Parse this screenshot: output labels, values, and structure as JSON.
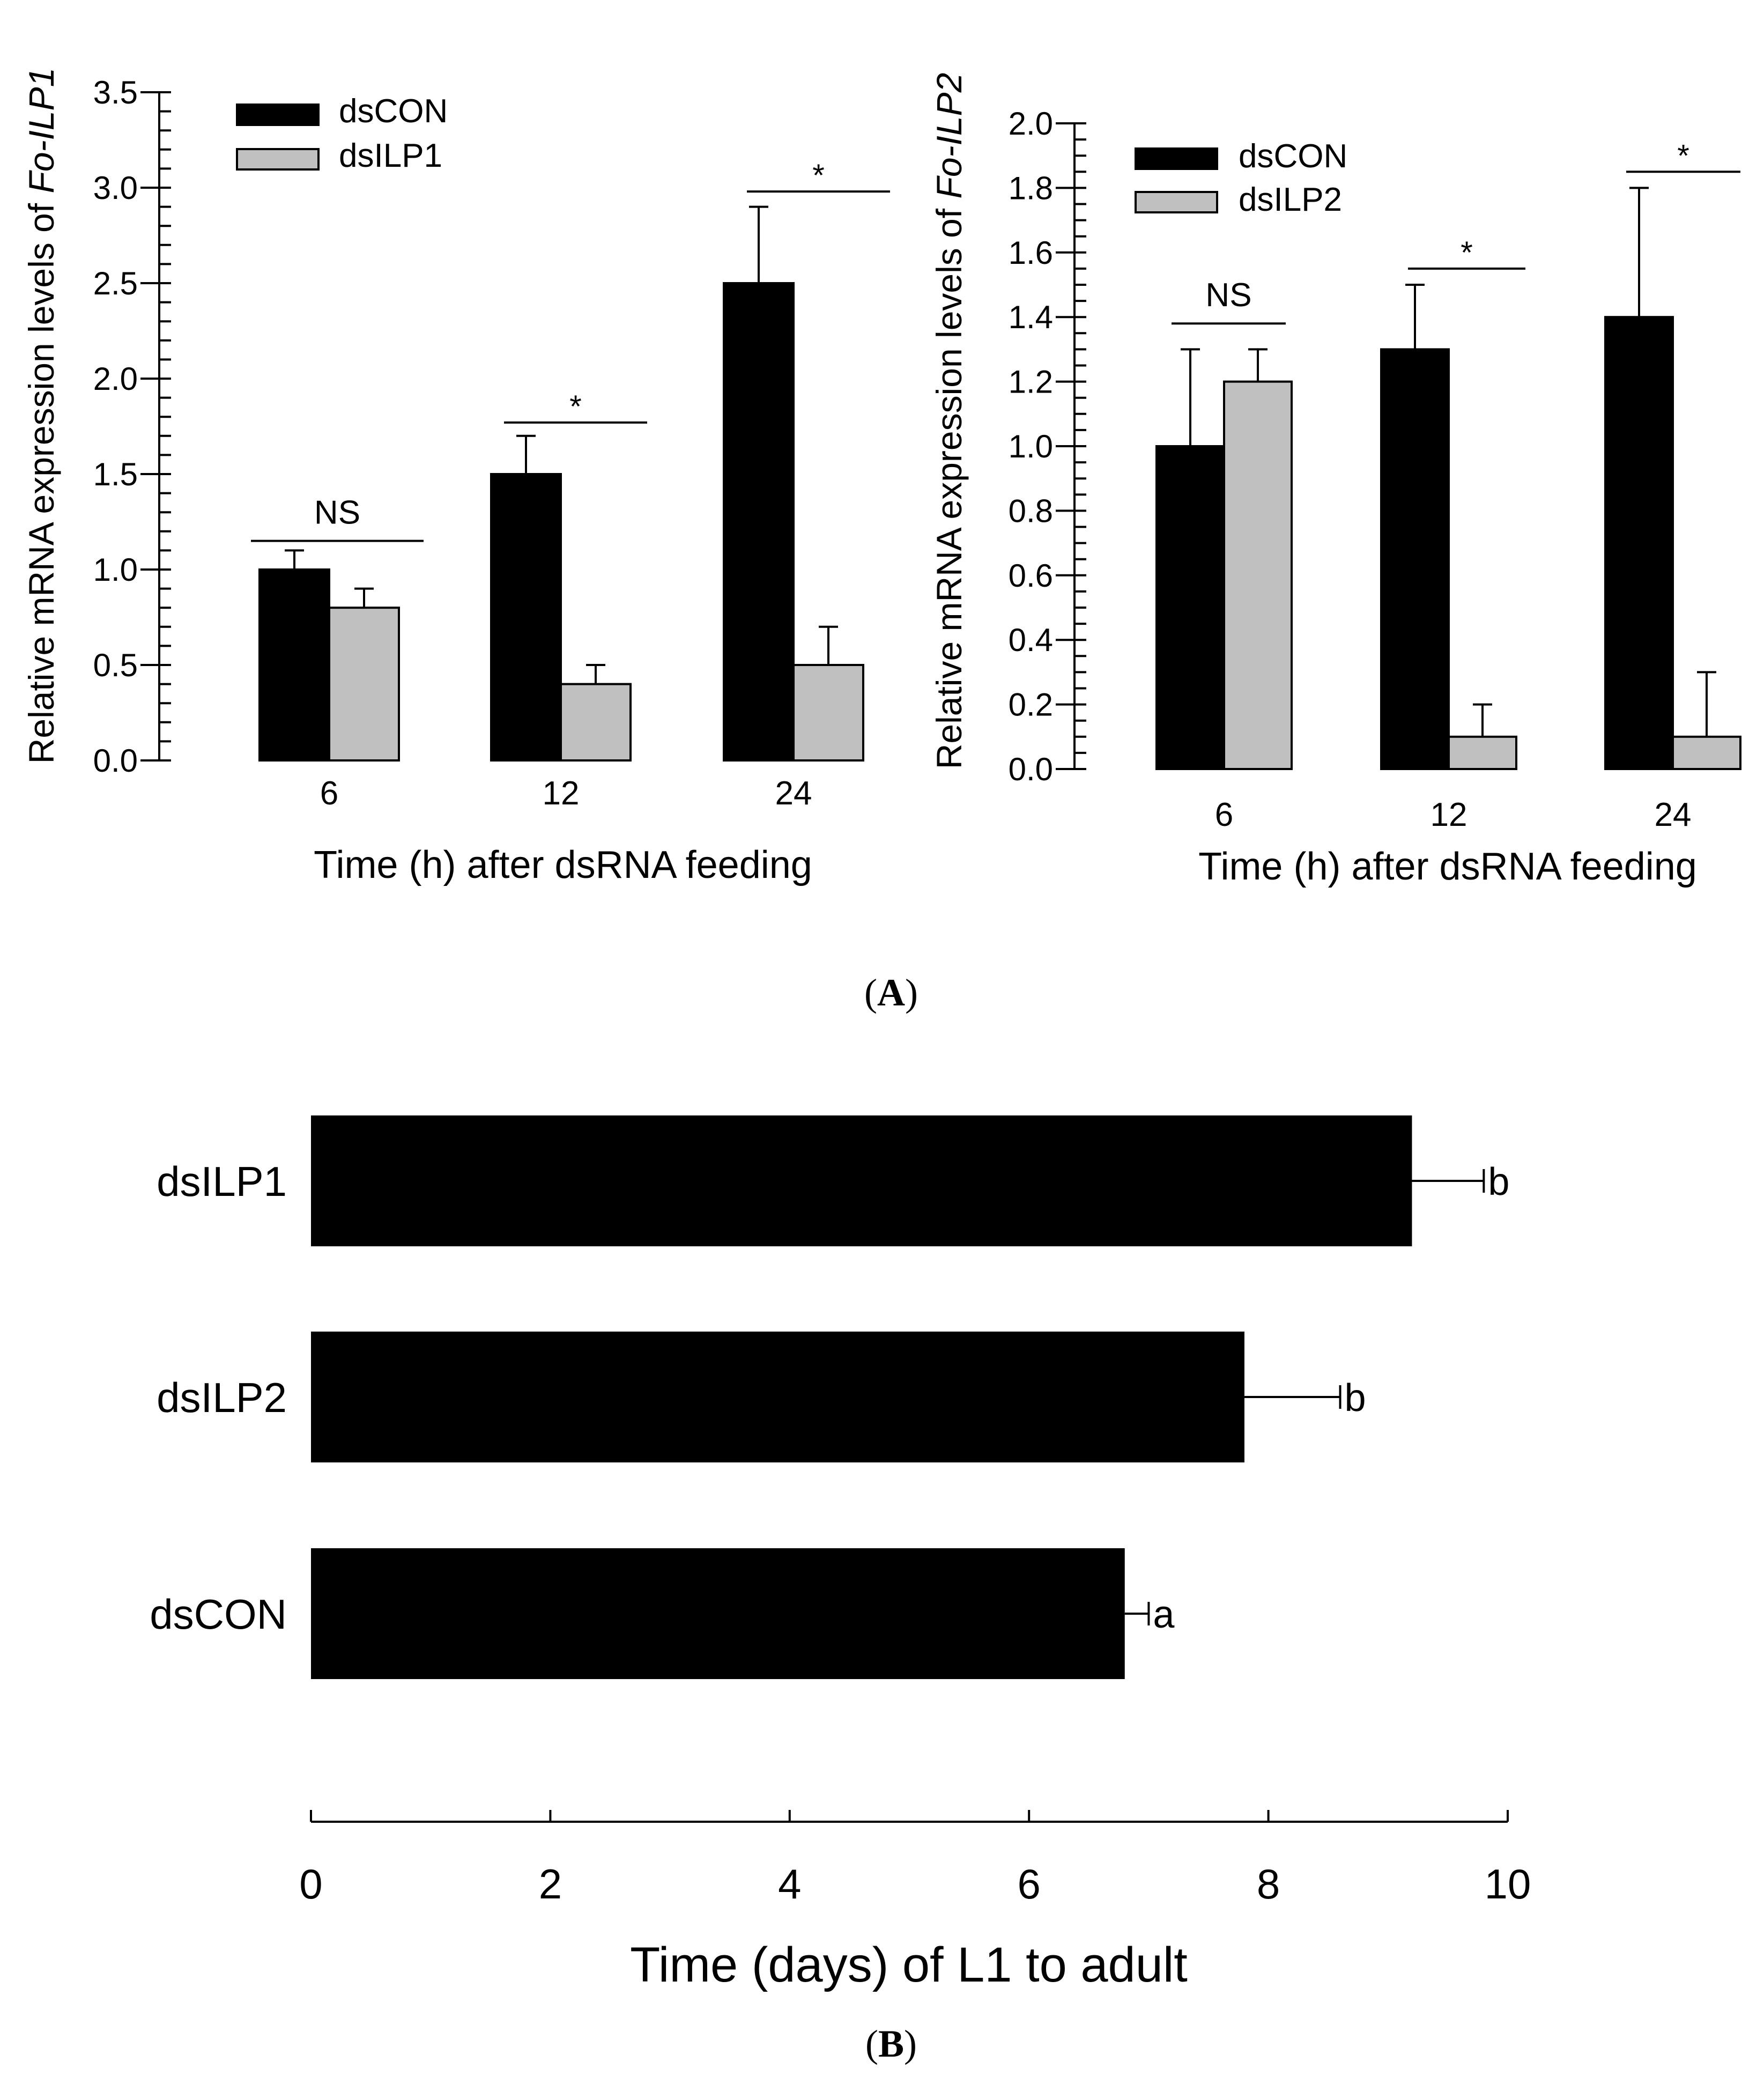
{
  "colors": {
    "control": "#000000",
    "treatment": "#c0c0c0",
    "axis": "#000000",
    "background": "#ffffff"
  },
  "panel_labels": {
    "a": {
      "open": "(",
      "letter": "A",
      "close": ")"
    },
    "b": {
      "open": "(",
      "letter": "B",
      "close": ")"
    }
  },
  "chart_data": [
    {
      "id": "ilp1",
      "type": "bar",
      "ylabel_prefix": "Relative mRNA expression levels of ",
      "ylabel_gene": "Fo-ILP1",
      "xlabel": "Time (h) after dsRNA feeding",
      "categories": [
        "6",
        "12",
        "24"
      ],
      "ylim": [
        0,
        3.5
      ],
      "ytick_values": [
        0,
        0.5,
        1,
        1.5,
        2,
        2.5,
        3,
        3.5
      ],
      "ytick_labels": [
        "0.0",
        "0.5",
        "1.0",
        "1.5",
        "2.0",
        "2.5",
        "3.0",
        "3.5"
      ],
      "legend_position": "top-left",
      "series": [
        {
          "name": "dsCON",
          "values": [
            1.0,
            1.5,
            2.5
          ],
          "errors": [
            0.1,
            0.2,
            0.4
          ]
        },
        {
          "name": "dsILP1",
          "values": [
            0.8,
            0.4,
            0.5
          ],
          "errors": [
            0.1,
            0.1,
            0.2
          ]
        }
      ],
      "significance": [
        "NS",
        "*",
        "*"
      ]
    },
    {
      "id": "ilp2",
      "type": "bar",
      "ylabel_prefix": "Relative mRNA expression levels of ",
      "ylabel_gene": "Fo-ILP2",
      "xlabel": "Time (h) after dsRNA feeding",
      "categories": [
        "6",
        "12",
        "24"
      ],
      "ylim": [
        0,
        2.0
      ],
      "ytick_values": [
        0,
        0.2,
        0.4,
        0.6,
        0.8,
        1.0,
        1.2,
        1.4,
        1.6,
        1.8,
        2.0
      ],
      "ytick_labels": [
        "0.0",
        "0.2",
        "0.4",
        "0.6",
        "0.8",
        "1.0",
        "1.2",
        "1.4",
        "1.6",
        "1.8",
        "2.0"
      ],
      "legend_position": "top-left",
      "series": [
        {
          "name": "dsCON",
          "values": [
            1.0,
            1.3,
            1.4
          ],
          "errors": [
            0.3,
            0.2,
            0.4
          ]
        },
        {
          "name": "dsILP2",
          "values": [
            1.2,
            0.1,
            0.1
          ],
          "errors": [
            0.1,
            0.1,
            0.2
          ]
        }
      ],
      "significance": [
        "NS",
        "*",
        "*"
      ]
    },
    {
      "id": "dev",
      "type": "bar",
      "orientation": "horizontal",
      "xlabel": "Time (days) of L1 to adult",
      "categories": [
        "dsILP1",
        "dsILP2",
        "dsCON"
      ],
      "values": [
        9.2,
        7.8,
        6.8
      ],
      "errors": [
        0.6,
        0.8,
        0.2
      ],
      "group_letters": [
        "b",
        "b",
        "a"
      ],
      "xlim": [
        0,
        10
      ],
      "xtick_values": [
        0,
        2,
        4,
        6,
        8,
        10
      ],
      "xtick_labels": [
        "0",
        "2",
        "4",
        "6",
        "8",
        "10"
      ]
    }
  ]
}
